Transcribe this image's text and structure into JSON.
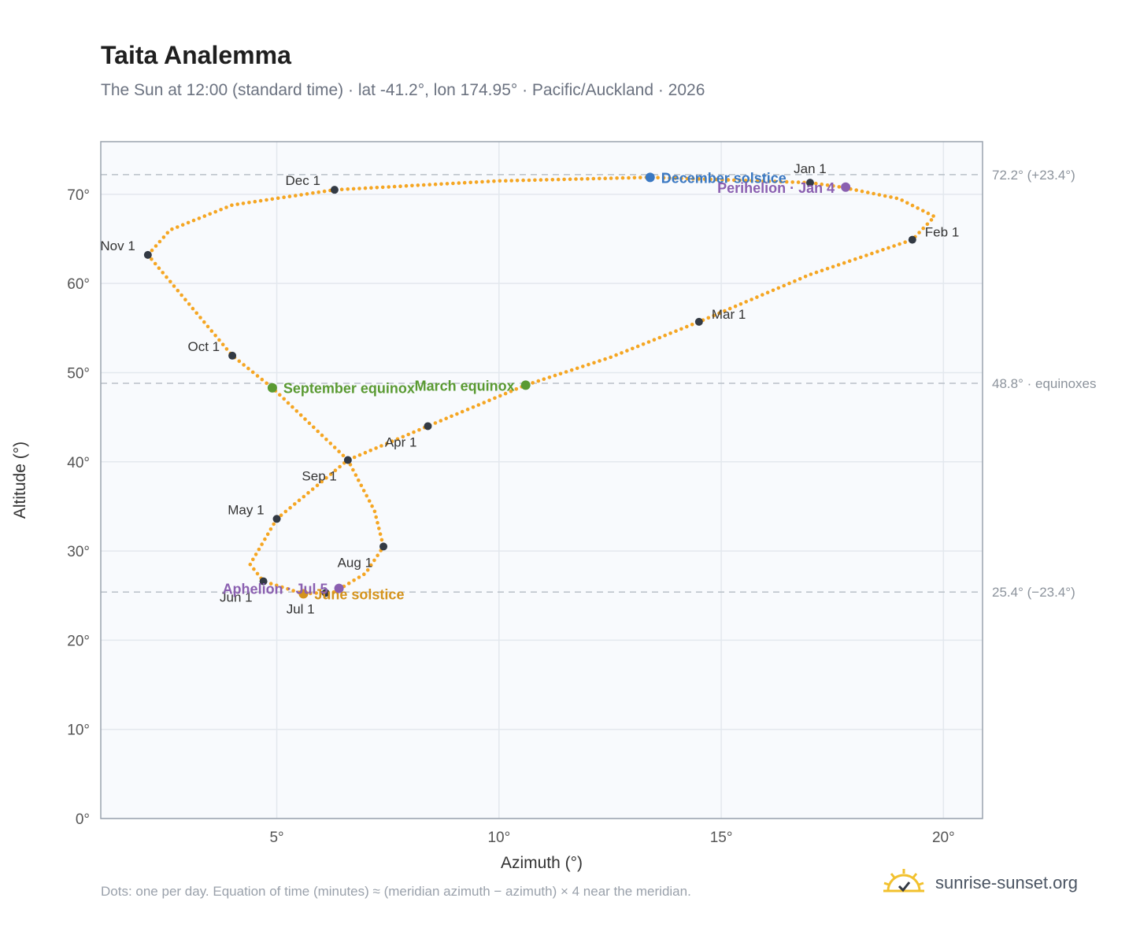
{
  "header": {
    "title": "Taita Analemma",
    "subtitle": "The Sun at 12:00 (standard time) · lat -41.2°, lon 174.95° · Pacific/Auckland · 2026"
  },
  "footer": {
    "note": "Dots: one per day. Equation of time (minutes) ≈ (meridian azimuth − azimuth) × 4 near the meridian.",
    "brand": "sunrise-sunset.org"
  },
  "colors": {
    "path": "#f5a623",
    "month_marker": "#333a44",
    "solstice_dec": "#3a78c2",
    "solstice_jun": "#d4931c",
    "equinox": "#5a9a32",
    "perihelion_aphelion": "#8a5fb0",
    "plot_bg": "#f8fafd",
    "grid": "#e3e8ee",
    "reference_line": "#b9c0c8"
  },
  "chart_data": {
    "type": "scatter",
    "title": "Taita Analemma",
    "xlabel": "Azimuth (°)",
    "ylabel": "Altitude (°)",
    "xlim": [
      1.04,
      20.88
    ],
    "ylim": [
      0,
      75.9
    ],
    "xticks": [
      5,
      10,
      15,
      20
    ],
    "xtick_labels": [
      "5°",
      "10°",
      "15°",
      "20°"
    ],
    "yticks": [
      0,
      10,
      20,
      30,
      40,
      50,
      60,
      70
    ],
    "ytick_labels": [
      "0°",
      "10°",
      "20°",
      "30°",
      "40°",
      "50°",
      "60°",
      "70°"
    ],
    "grid": true,
    "reference_lines": [
      {
        "y": 72.2,
        "label": "72.2° (+23.4°)"
      },
      {
        "y": 48.8,
        "label": "48.8° · equinoxes"
      },
      {
        "y": 25.4,
        "label": "25.4° (−23.4°)"
      }
    ],
    "path_keypoints": [
      {
        "x": 17.0,
        "y": 71.3
      },
      {
        "x": 17.7,
        "y": 70.8
      },
      {
        "x": 19.0,
        "y": 69.5
      },
      {
        "x": 19.8,
        "y": 67.5
      },
      {
        "x": 19.3,
        "y": 64.9
      },
      {
        "x": 17.0,
        "y": 61.0
      },
      {
        "x": 14.5,
        "y": 55.7
      },
      {
        "x": 12.5,
        "y": 51.7
      },
      {
        "x": 10.6,
        "y": 48.6
      },
      {
        "x": 8.4,
        "y": 44.0
      },
      {
        "x": 6.6,
        "y": 40.2
      },
      {
        "x": 5.0,
        "y": 33.6
      },
      {
        "x": 4.4,
        "y": 28.5
      },
      {
        "x": 4.7,
        "y": 26.6
      },
      {
        "x": 5.6,
        "y": 25.2
      },
      {
        "x": 6.3,
        "y": 25.4
      },
      {
        "x": 7.0,
        "y": 27.5
      },
      {
        "x": 7.4,
        "y": 30.5
      },
      {
        "x": 7.2,
        "y": 34.5
      },
      {
        "x": 6.6,
        "y": 40.2
      },
      {
        "x": 4.9,
        "y": 48.3
      },
      {
        "x": 4.0,
        "y": 51.9
      },
      {
        "x": 2.1,
        "y": 63.2
      },
      {
        "x": 2.6,
        "y": 66.0
      },
      {
        "x": 4.0,
        "y": 68.8
      },
      {
        "x": 6.3,
        "y": 70.5
      },
      {
        "x": 10.0,
        "y": 71.5
      },
      {
        "x": 13.4,
        "y": 71.9
      },
      {
        "x": 17.0,
        "y": 71.3
      }
    ],
    "month_markers": [
      {
        "label": "Jan 1",
        "x": 17.0,
        "y": 71.3,
        "pos": "above"
      },
      {
        "label": "Feb 1",
        "x": 19.3,
        "y": 64.9,
        "pos": "right"
      },
      {
        "label": "Mar 1",
        "x": 14.5,
        "y": 55.7,
        "pos": "right"
      },
      {
        "label": "Apr 1",
        "x": 8.4,
        "y": 44.0,
        "pos": "below-left"
      },
      {
        "label": "May 1",
        "x": 5.0,
        "y": 33.6,
        "pos": "left"
      },
      {
        "label": "Jun 1",
        "x": 4.7,
        "y": 26.6,
        "pos": "below-left"
      },
      {
        "label": "Jul 1",
        "x": 6.1,
        "y": 25.3,
        "pos": "below-left"
      },
      {
        "label": "Aug 1",
        "x": 7.4,
        "y": 30.5,
        "pos": "below-left"
      },
      {
        "label": "Sep 1",
        "x": 6.6,
        "y": 40.2,
        "pos": "below-left"
      },
      {
        "label": "Oct 1",
        "x": 4.0,
        "y": 51.9,
        "pos": "left"
      },
      {
        "label": "Nov 1",
        "x": 2.1,
        "y": 63.2,
        "pos": "left"
      },
      {
        "label": "Dec 1",
        "x": 6.3,
        "y": 70.5,
        "pos": "above-left"
      }
    ],
    "events": [
      {
        "label": "December solstice",
        "x": 13.4,
        "y": 71.9,
        "color": "#3a78c2",
        "pos": "right"
      },
      {
        "label": "Perihelion · Jan 4",
        "x": 17.8,
        "y": 70.8,
        "color": "#8a5fb0",
        "pos": "left"
      },
      {
        "label": "March equinox",
        "x": 10.6,
        "y": 48.6,
        "color": "#5a9a32",
        "pos": "left"
      },
      {
        "label": "September equinox",
        "x": 4.9,
        "y": 48.3,
        "color": "#5a9a32",
        "pos": "right"
      },
      {
        "label": "June solstice",
        "x": 5.6,
        "y": 25.2,
        "color": "#d4931c",
        "pos": "right"
      },
      {
        "label": "Aphelion · Jul 5",
        "x": 6.4,
        "y": 25.8,
        "color": "#8a5fb0",
        "pos": "left"
      }
    ]
  }
}
